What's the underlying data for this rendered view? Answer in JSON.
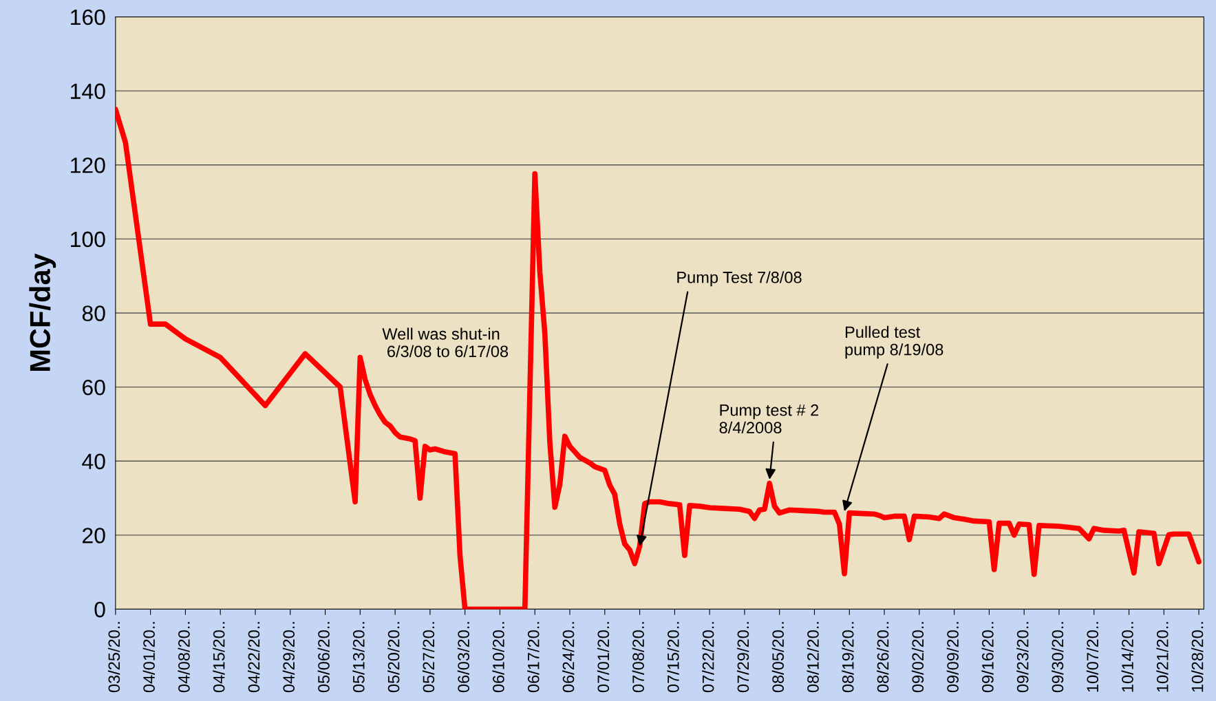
{
  "chart_data": {
    "type": "line",
    "ylabel": "MCF/day",
    "ylim": [
      0,
      160
    ],
    "yticks": [
      0,
      20,
      40,
      60,
      80,
      100,
      120,
      140,
      160
    ],
    "xlim": [
      "2008-03-25",
      "2008-10-29"
    ],
    "xticks": [
      {
        "value": "2008-03-25",
        "label": "03/25/20.."
      },
      {
        "value": "2008-04-01",
        "label": "04/01/20.."
      },
      {
        "value": "2008-04-08",
        "label": "04/08/20.."
      },
      {
        "value": "2008-04-15",
        "label": "04/15/20.."
      },
      {
        "value": "2008-04-22",
        "label": "04/22/20.."
      },
      {
        "value": "2008-04-29",
        "label": "04/29/20.."
      },
      {
        "value": "2008-05-06",
        "label": "05/06/20.."
      },
      {
        "value": "2008-05-13",
        "label": "05/13/20.."
      },
      {
        "value": "2008-05-20",
        "label": "05/20/20.."
      },
      {
        "value": "2008-05-27",
        "label": "05/27/20.."
      },
      {
        "value": "2008-06-03",
        "label": "06/03/20.."
      },
      {
        "value": "2008-06-10",
        "label": "06/10/20.."
      },
      {
        "value": "2008-06-17",
        "label": "06/17/20.."
      },
      {
        "value": "2008-06-24",
        "label": "06/24/20.."
      },
      {
        "value": "2008-07-01",
        "label": "07/01/20.."
      },
      {
        "value": "2008-07-08",
        "label": "07/08/20.."
      },
      {
        "value": "2008-07-15",
        "label": "07/15/20.."
      },
      {
        "value": "2008-07-22",
        "label": "07/22/20.."
      },
      {
        "value": "2008-07-29",
        "label": "07/29/20.."
      },
      {
        "value": "2008-08-05",
        "label": "08/05/20.."
      },
      {
        "value": "2008-08-12",
        "label": "08/12/20.."
      },
      {
        "value": "2008-08-19",
        "label": "08/19/20.."
      },
      {
        "value": "2008-08-26",
        "label": "08/26/20.."
      },
      {
        "value": "2008-09-02",
        "label": "09/02/20.."
      },
      {
        "value": "2008-09-09",
        "label": "09/09/20.."
      },
      {
        "value": "2008-09-16",
        "label": "09/16/20.."
      },
      {
        "value": "2008-09-23",
        "label": "09/23/20.."
      },
      {
        "value": "2008-09-30",
        "label": "09/30/20.."
      },
      {
        "value": "2008-10-07",
        "label": "10/07/20.."
      },
      {
        "value": "2008-10-14",
        "label": "10/14/20.."
      },
      {
        "value": "2008-10-21",
        "label": "10/21/20.."
      },
      {
        "value": "2008-10-28",
        "label": "10/28/20.."
      }
    ],
    "grid": "y",
    "marker": "none",
    "line_style": "solid",
    "x": [
      "2008-03-25",
      "2008-03-27",
      "2008-04-01",
      "2008-04-04",
      "2008-04-08",
      "2008-04-15",
      "2008-04-24",
      "2008-05-02",
      "2008-05-09",
      "2008-05-12",
      "2008-05-13",
      "2008-05-14",
      "2008-05-15",
      "2008-05-16",
      "2008-05-17",
      "2008-05-18",
      "2008-05-19",
      "2008-05-20",
      "2008-05-21",
      "2008-05-23",
      "2008-05-24",
      "2008-05-25",
      "2008-05-26",
      "2008-05-27",
      "2008-05-28",
      "2008-05-30",
      "2008-06-01",
      "2008-06-02",
      "2008-06-03",
      "2008-06-15",
      "2008-06-17",
      "2008-06-18",
      "2008-06-19",
      "2008-06-20",
      "2008-06-21",
      "2008-06-22",
      "2008-06-23",
      "2008-06-24",
      "2008-06-25",
      "2008-06-26",
      "2008-06-28",
      "2008-06-29",
      "2008-07-01",
      "2008-07-02",
      "2008-07-03",
      "2008-07-04",
      "2008-07-05",
      "2008-07-06",
      "2008-07-07",
      "2008-07-08",
      "2008-07-09",
      "2008-07-10",
      "2008-07-12",
      "2008-07-14",
      "2008-07-16",
      "2008-07-17",
      "2008-07-18",
      "2008-07-20",
      "2008-07-22",
      "2008-07-25",
      "2008-07-28",
      "2008-07-30",
      "2008-07-31",
      "2008-08-01",
      "2008-08-02",
      "2008-08-03",
      "2008-08-04",
      "2008-08-05",
      "2008-08-07",
      "2008-08-10",
      "2008-08-13",
      "2008-08-14",
      "2008-08-16",
      "2008-08-17",
      "2008-08-18",
      "2008-08-19",
      "2008-08-22",
      "2008-08-24",
      "2008-08-25",
      "2008-08-26",
      "2008-08-28",
      "2008-08-30",
      "2008-08-31",
      "2008-09-01",
      "2008-09-04",
      "2008-09-06",
      "2008-09-07",
      "2008-09-09",
      "2008-09-11",
      "2008-09-13",
      "2008-09-16",
      "2008-09-17",
      "2008-09-18",
      "2008-09-20",
      "2008-09-21",
      "2008-09-22",
      "2008-09-24",
      "2008-09-25",
      "2008-09-26",
      "2008-09-30",
      "2008-10-04",
      "2008-10-06",
      "2008-10-07",
      "2008-10-09",
      "2008-10-12",
      "2008-10-13",
      "2008-10-15",
      "2008-10-16",
      "2008-10-19",
      "2008-10-20",
      "2008-10-22",
      "2008-10-23",
      "2008-10-26",
      "2008-10-28"
    ],
    "series": [
      {
        "color": "#ff0000",
        "values": [
          135,
          126,
          77,
          77,
          73,
          68,
          55,
          69,
          60,
          29,
          68,
          62,
          58,
          55,
          52.5,
          50.5,
          49.5,
          47.7,
          46.5,
          46,
          45.5,
          30,
          44,
          43,
          43.3,
          42.5,
          42,
          14.5,
          0,
          0,
          117.6,
          91,
          74.5,
          45,
          27.5,
          33.7,
          46.7,
          44,
          42.5,
          41,
          39.5,
          38.5,
          37.5,
          33.5,
          31,
          23,
          17.6,
          16,
          12.3,
          17,
          28.5,
          29,
          29,
          28.5,
          28.2,
          14.5,
          28,
          27.8,
          27.4,
          27.2,
          27,
          26.4,
          24.5,
          26.8,
          27,
          34,
          27.8,
          26,
          26.8,
          26.6,
          26.4,
          26.2,
          26.2,
          23,
          9.6,
          26,
          25.8,
          25.7,
          25.3,
          24.7,
          25.1,
          25.1,
          18.8,
          25.1,
          24.9,
          24.5,
          25.7,
          24.7,
          24.3,
          23.8,
          23.6,
          10.7,
          23.2,
          23.2,
          20,
          23,
          22.8,
          9.4,
          22.6,
          22.4,
          21.8,
          19,
          21.8,
          21.3,
          21.1,
          21.3,
          9.8,
          20.9,
          20.5,
          12.3,
          20.1,
          20.3,
          20.3,
          12.8
        ]
      }
    ],
    "annotations": [
      "Well was shut-in\n 6/3/08 to 6/17/08",
      {
        "text": "Pump Test 7/8/08",
        "x": "2008-07-08",
        "y": 17
      },
      {
        "text": "Pump test # 2\n8/4/2008",
        "x": "2008-08-03",
        "y": 35
      },
      {
        "text": "Pulled test\npump 8/19/08",
        "x": "2008-08-18",
        "y": 26.4
      }
    ]
  }
}
